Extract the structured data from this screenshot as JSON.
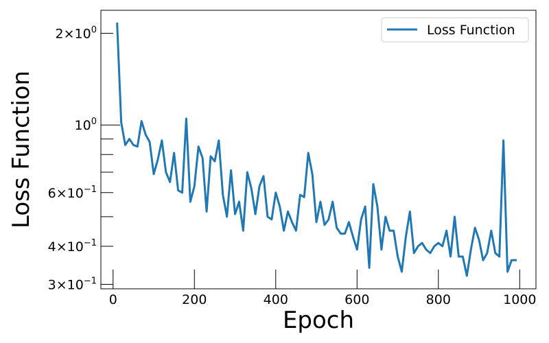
{
  "chart_data": {
    "type": "line",
    "title": "",
    "xlabel": "Epoch",
    "ylabel": "Loss Function",
    "xlim": [
      -30,
      1040
    ],
    "ylim": [
      0.29,
      2.38
    ],
    "yscale": "log",
    "grid": false,
    "legend": {
      "position": "top-right",
      "entries": [
        "Loss Function"
      ]
    },
    "x_ticks": [
      {
        "value": 0,
        "label": "0"
      },
      {
        "value": 200,
        "label": "200"
      },
      {
        "value": 400,
        "label": "400"
      },
      {
        "value": 600,
        "label": "600"
      },
      {
        "value": 800,
        "label": "800"
      },
      {
        "value": 1000,
        "label": "1000"
      }
    ],
    "y_major_ticks": [
      {
        "value": 1.0,
        "base": "10",
        "exp": "0"
      }
    ],
    "y_minor_ticks": [
      {
        "value": 0.3,
        "mant": "3",
        "base": "10",
        "exp": "−1"
      },
      {
        "value": 0.4,
        "mant": "4",
        "base": "10",
        "exp": "−1"
      },
      {
        "value": 0.5
      },
      {
        "value": 0.6,
        "mant": "6",
        "base": "10",
        "exp": "−1"
      },
      {
        "value": 0.7
      },
      {
        "value": 0.8
      },
      {
        "value": 0.9
      },
      {
        "value": 2.0,
        "mant": "2",
        "base": "10",
        "exp": "0"
      }
    ],
    "series": [
      {
        "name": "Loss Function",
        "color": "#1f77b4",
        "x": [
          10,
          20,
          30,
          40,
          50,
          60,
          70,
          80,
          90,
          100,
          110,
          120,
          130,
          140,
          150,
          160,
          170,
          180,
          190,
          200,
          210,
          220,
          230,
          240,
          250,
          260,
          270,
          280,
          290,
          300,
          310,
          320,
          330,
          340,
          350,
          360,
          370,
          380,
          390,
          400,
          410,
          420,
          430,
          440,
          450,
          460,
          470,
          480,
          490,
          500,
          510,
          520,
          530,
          540,
          550,
          560,
          570,
          580,
          590,
          600,
          610,
          620,
          630,
          640,
          650,
          660,
          670,
          680,
          690,
          700,
          710,
          720,
          730,
          740,
          750,
          760,
          770,
          780,
          790,
          800,
          810,
          820,
          830,
          840,
          850,
          860,
          870,
          880,
          890,
          900,
          910,
          920,
          930,
          940,
          950,
          960,
          970,
          980,
          990
        ],
        "y": [
          2.15,
          1.02,
          0.86,
          0.9,
          0.86,
          0.85,
          1.03,
          0.93,
          0.88,
          0.69,
          0.77,
          0.89,
          0.7,
          0.65,
          0.81,
          0.61,
          0.6,
          1.05,
          0.56,
          0.63,
          0.85,
          0.78,
          0.52,
          0.79,
          0.76,
          0.89,
          0.59,
          0.5,
          0.71,
          0.51,
          0.56,
          0.45,
          0.7,
          0.62,
          0.51,
          0.63,
          0.68,
          0.5,
          0.49,
          0.6,
          0.54,
          0.45,
          0.52,
          0.48,
          0.45,
          0.59,
          0.58,
          0.81,
          0.69,
          0.48,
          0.56,
          0.47,
          0.49,
          0.56,
          0.46,
          0.44,
          0.44,
          0.48,
          0.43,
          0.39,
          0.49,
          0.54,
          0.34,
          0.64,
          0.54,
          0.39,
          0.5,
          0.45,
          0.45,
          0.37,
          0.33,
          0.43,
          0.52,
          0.38,
          0.4,
          0.41,
          0.39,
          0.38,
          0.4,
          0.41,
          0.4,
          0.45,
          0.37,
          0.5,
          0.37,
          0.37,
          0.32,
          0.39,
          0.46,
          0.42,
          0.36,
          0.38,
          0.45,
          0.38,
          0.37,
          0.89,
          0.33,
          0.36,
          0.36
        ]
      }
    ]
  }
}
